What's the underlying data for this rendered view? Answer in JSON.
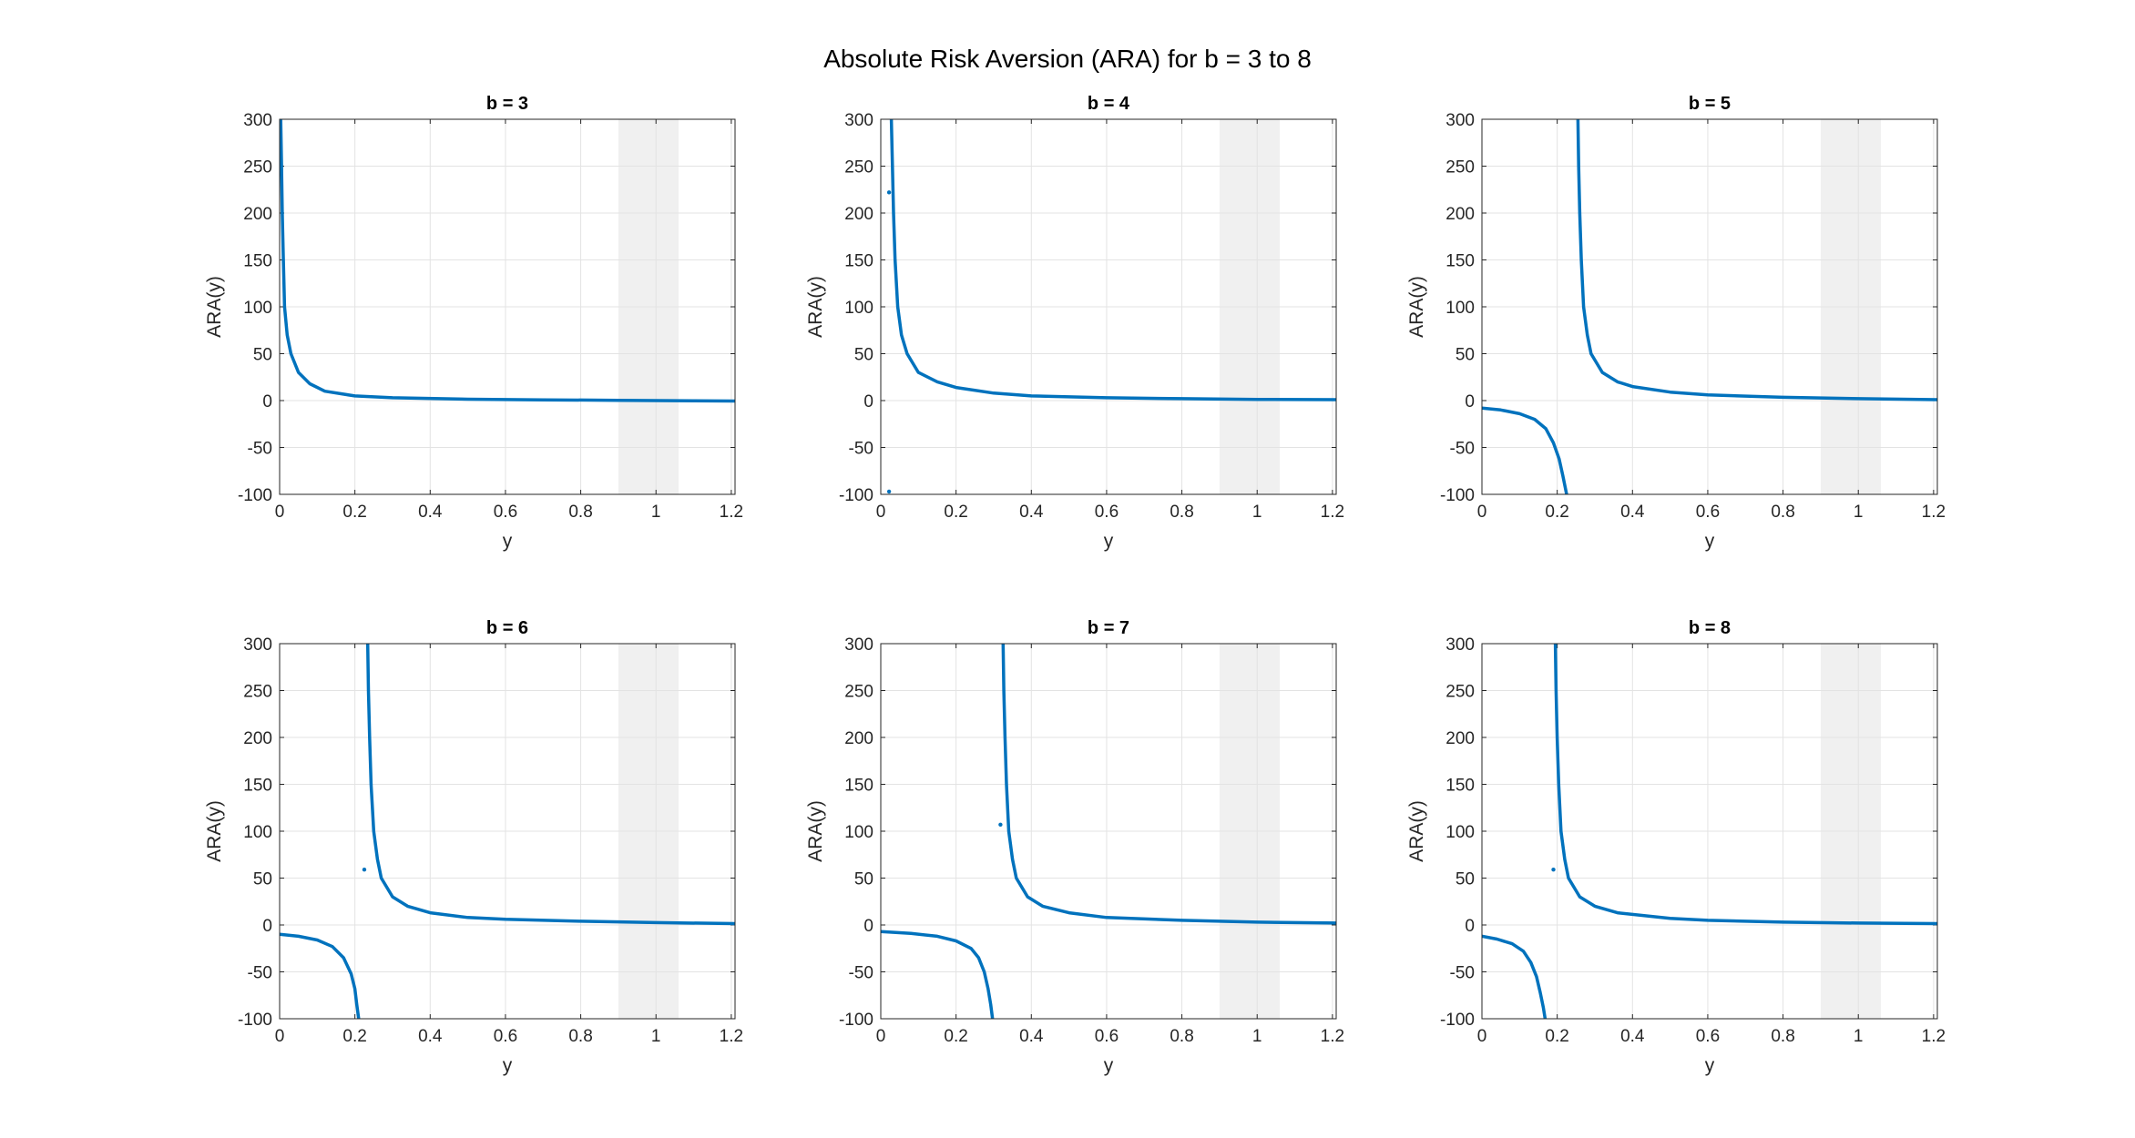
{
  "figure": {
    "title": "Absolute Risk Aversion (ARA) for b = 3 to 8"
  },
  "colors": {
    "line": "#0072BD",
    "shade": "#F0F0F0",
    "grid": "#E3E3E3",
    "axis": "#262626"
  },
  "chart_data": [
    {
      "type": "line",
      "title": "b = 3",
      "xlabel": "y",
      "ylabel": "ARA(y)",
      "xlim": [
        0,
        1.21
      ],
      "ylim": [
        -100,
        300
      ],
      "xticks": [
        "0",
        "0.2",
        "0.4",
        "0.6",
        "0.8",
        "1",
        "1.2"
      ],
      "yticks": [
        "-100",
        "-50",
        "0",
        "50",
        "100",
        "150",
        "200",
        "250",
        "300"
      ],
      "grid": true,
      "shaded_x_range": [
        0.9,
        1.06
      ],
      "series": [
        {
          "segments": [
            [
              [
                0.003,
                300
              ],
              [
                0.005,
                250
              ],
              [
                0.007,
                200
              ],
              [
                0.01,
                150
              ],
              [
                0.013,
                100
              ],
              [
                0.02,
                70
              ],
              [
                0.03,
                50
              ],
              [
                0.05,
                30
              ],
              [
                0.08,
                18
              ],
              [
                0.12,
                10
              ],
              [
                0.2,
                5
              ],
              [
                0.3,
                3
              ],
              [
                0.5,
                1.5
              ],
              [
                0.7,
                0.8
              ],
              [
                0.9,
                0.3
              ],
              [
                1.0,
                0
              ],
              [
                1.1,
                -0.3
              ],
              [
                1.21,
                -0.5
              ]
            ]
          ],
          "outliers": []
        }
      ]
    },
    {
      "type": "line",
      "title": "b = 4",
      "xlabel": "y",
      "ylabel": "ARA(y)",
      "xlim": [
        0,
        1.21
      ],
      "ylim": [
        -100,
        300
      ],
      "xticks": [
        "0",
        "0.2",
        "0.4",
        "0.6",
        "0.8",
        "1",
        "1.2"
      ],
      "yticks": [
        "-100",
        "-50",
        "0",
        "50",
        "100",
        "150",
        "200",
        "250",
        "300"
      ],
      "grid": true,
      "shaded_x_range": [
        0.9,
        1.06
      ],
      "series": [
        {
          "segments": [
            [
              [
                0.028,
                300
              ],
              [
                0.031,
                250
              ],
              [
                0.034,
                200
              ],
              [
                0.038,
                150
              ],
              [
                0.045,
                100
              ],
              [
                0.055,
                70
              ],
              [
                0.07,
                50
              ],
              [
                0.1,
                30
              ],
              [
                0.15,
                20
              ],
              [
                0.2,
                14
              ],
              [
                0.3,
                8
              ],
              [
                0.4,
                5
              ],
              [
                0.6,
                3
              ],
              [
                0.8,
                2
              ],
              [
                1.0,
                1.3
              ],
              [
                1.21,
                1
              ]
            ]
          ],
          "outliers": [
            [
              0.022,
              222
            ],
            [
              0.022,
              -97
            ]
          ]
        }
      ]
    },
    {
      "type": "line",
      "title": "b = 5",
      "xlabel": "y",
      "ylabel": "ARA(y)",
      "xlim": [
        0,
        1.21
      ],
      "ylim": [
        -100,
        300
      ],
      "xticks": [
        "0",
        "0.2",
        "0.4",
        "0.6",
        "0.8",
        "1",
        "1.2"
      ],
      "yticks": [
        "-100",
        "-50",
        "0",
        "50",
        "100",
        "150",
        "200",
        "250",
        "300"
      ],
      "grid": true,
      "shaded_x_range": [
        0.9,
        1.06
      ],
      "series": [
        {
          "segments": [
            [
              [
                0,
                -8
              ],
              [
                0.05,
                -10
              ],
              [
                0.1,
                -14
              ],
              [
                0.14,
                -20
              ],
              [
                0.17,
                -30
              ],
              [
                0.19,
                -45
              ],
              [
                0.205,
                -62
              ],
              [
                0.215,
                -80
              ],
              [
                0.225,
                -100
              ]
            ],
            [
              [
                0.255,
                300
              ],
              [
                0.257,
                250
              ],
              [
                0.26,
                200
              ],
              [
                0.264,
                150
              ],
              [
                0.27,
                100
              ],
              [
                0.28,
                70
              ],
              [
                0.29,
                50
              ],
              [
                0.32,
                30
              ],
              [
                0.36,
                20
              ],
              [
                0.4,
                15
              ],
              [
                0.5,
                9
              ],
              [
                0.6,
                6
              ],
              [
                0.8,
                3.5
              ],
              [
                1.0,
                2
              ],
              [
                1.21,
                1
              ]
            ]
          ],
          "outliers": []
        }
      ]
    },
    {
      "type": "line",
      "title": "b = 6",
      "xlabel": "y",
      "ylabel": "ARA(y)",
      "xlim": [
        0,
        1.21
      ],
      "ylim": [
        -100,
        300
      ],
      "xticks": [
        "0",
        "0.2",
        "0.4",
        "0.6",
        "0.8",
        "1",
        "1.2"
      ],
      "yticks": [
        "-100",
        "-50",
        "0",
        "50",
        "100",
        "150",
        "200",
        "250",
        "300"
      ],
      "grid": true,
      "shaded_x_range": [
        0.9,
        1.06
      ],
      "series": [
        {
          "segments": [
            [
              [
                0,
                -10
              ],
              [
                0.05,
                -12
              ],
              [
                0.1,
                -16
              ],
              [
                0.14,
                -23
              ],
              [
                0.17,
                -35
              ],
              [
                0.19,
                -52
              ],
              [
                0.2,
                -68
              ],
              [
                0.205,
                -85
              ],
              [
                0.21,
                -100
              ]
            ],
            [
              [
                0.234,
                300
              ],
              [
                0.236,
                250
              ],
              [
                0.239,
                200
              ],
              [
                0.243,
                150
              ],
              [
                0.25,
                100
              ],
              [
                0.26,
                70
              ],
              [
                0.27,
                50
              ],
              [
                0.3,
                30
              ],
              [
                0.34,
                20
              ],
              [
                0.4,
                13
              ],
              [
                0.5,
                8
              ],
              [
                0.6,
                6
              ],
              [
                0.8,
                4
              ],
              [
                1.0,
                2.5
              ],
              [
                1.21,
                1.5
              ]
            ]
          ],
          "outliers": [
            [
              0.225,
              59
            ]
          ]
        }
      ]
    },
    {
      "type": "line",
      "title": "b = 7",
      "xlabel": "y",
      "ylabel": "ARA(y)",
      "xlim": [
        0,
        1.21
      ],
      "ylim": [
        -100,
        300
      ],
      "xticks": [
        "0",
        "0.2",
        "0.4",
        "0.6",
        "0.8",
        "1",
        "1.2"
      ],
      "yticks": [
        "-100",
        "-50",
        "0",
        "50",
        "100",
        "150",
        "200",
        "250",
        "300"
      ],
      "grid": true,
      "shaded_x_range": [
        0.9,
        1.06
      ],
      "series": [
        {
          "segments": [
            [
              [
                0,
                -7
              ],
              [
                0.08,
                -9
              ],
              [
                0.15,
                -12
              ],
              [
                0.2,
                -17
              ],
              [
                0.24,
                -25
              ],
              [
                0.26,
                -35
              ],
              [
                0.275,
                -50
              ],
              [
                0.285,
                -68
              ],
              [
                0.292,
                -85
              ],
              [
                0.297,
                -100
              ]
            ],
            [
              [
                0.325,
                300
              ],
              [
                0.327,
                250
              ],
              [
                0.33,
                200
              ],
              [
                0.334,
                150
              ],
              [
                0.34,
                100
              ],
              [
                0.35,
                70
              ],
              [
                0.36,
                50
              ],
              [
                0.39,
                30
              ],
              [
                0.43,
                20
              ],
              [
                0.5,
                13
              ],
              [
                0.6,
                8
              ],
              [
                0.8,
                5
              ],
              [
                1.0,
                3
              ],
              [
                1.21,
                2
              ]
            ]
          ],
          "outliers": [
            [
              0.318,
              107
            ]
          ]
        }
      ]
    },
    {
      "type": "line",
      "title": "b = 8",
      "xlabel": "y",
      "ylabel": "ARA(y)",
      "xlim": [
        0,
        1.21
      ],
      "ylim": [
        -100,
        300
      ],
      "xticks": [
        "0",
        "0.2",
        "0.4",
        "0.6",
        "0.8",
        "1",
        "1.2"
      ],
      "yticks": [
        "-100",
        "-50",
        "0",
        "50",
        "100",
        "150",
        "200",
        "250",
        "300"
      ],
      "grid": true,
      "shaded_x_range": [
        0.9,
        1.06
      ],
      "series": [
        {
          "segments": [
            [
              [
                0,
                -12
              ],
              [
                0.04,
                -15
              ],
              [
                0.08,
                -20
              ],
              [
                0.11,
                -28
              ],
              [
                0.13,
                -40
              ],
              [
                0.145,
                -55
              ],
              [
                0.155,
                -72
              ],
              [
                0.163,
                -88
              ],
              [
                0.168,
                -100
              ]
            ],
            [
              [
                0.195,
                300
              ],
              [
                0.197,
                250
              ],
              [
                0.2,
                200
              ],
              [
                0.204,
                150
              ],
              [
                0.21,
                100
              ],
              [
                0.22,
                70
              ],
              [
                0.23,
                50
              ],
              [
                0.26,
                30
              ],
              [
                0.3,
                20
              ],
              [
                0.36,
                13
              ],
              [
                0.5,
                7
              ],
              [
                0.6,
                5
              ],
              [
                0.8,
                3
              ],
              [
                1.0,
                2
              ],
              [
                1.21,
                1.5
              ]
            ]
          ],
          "outliers": [
            [
              0.19,
              59
            ]
          ]
        }
      ]
    }
  ]
}
